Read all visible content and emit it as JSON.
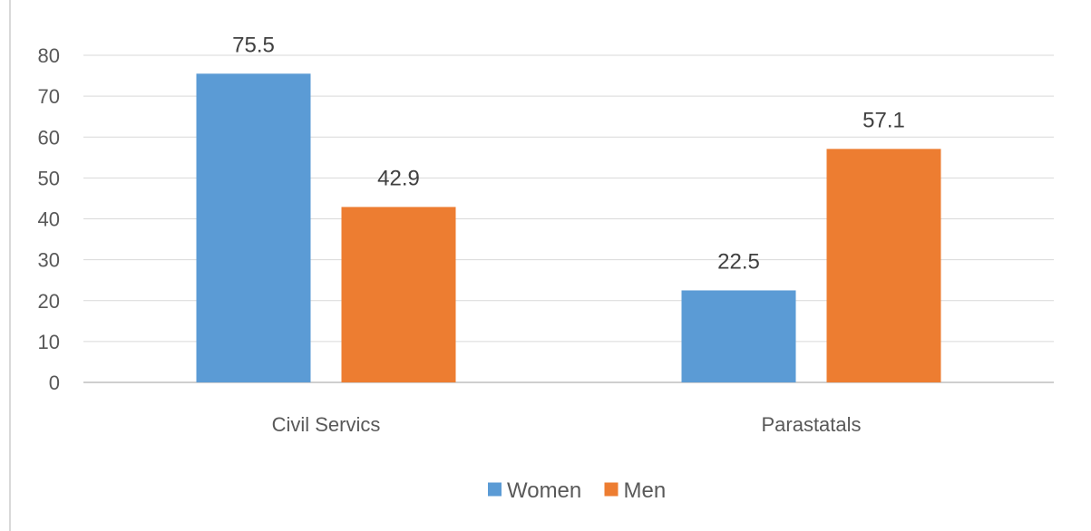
{
  "chart_data": {
    "type": "bar",
    "categories": [
      "Civil Servics",
      "Parastatals"
    ],
    "series": [
      {
        "name": "Women",
        "values": [
          75.5,
          22.5
        ],
        "color": "#5b9bd5"
      },
      {
        "name": "Men",
        "values": [
          42.9,
          57.1
        ],
        "color": "#ed7d31"
      }
    ],
    "ylim": [
      0,
      80
    ],
    "yticks": [
      0,
      10,
      20,
      30,
      40,
      50,
      60,
      70,
      80
    ],
    "grid": true,
    "legend_position": "bottom",
    "gridline_color": "#d9d9d9",
    "axis_color": "#bfbfbf"
  }
}
